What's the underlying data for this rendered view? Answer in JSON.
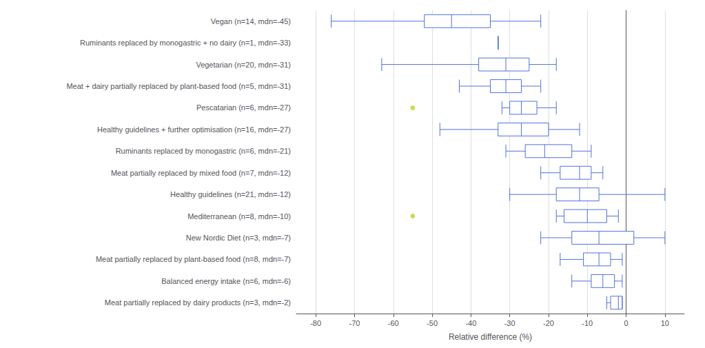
{
  "chart_data": {
    "type": "boxplot",
    "orientation": "horizontal",
    "categories": [
      "Vegan (n=14, mdn=-45)",
      "Ruminants replaced by monogastric + no dairy (n=1, mdn=-33)",
      "Vegetarian (n=20, mdn=-31)",
      "Meat + dairy partially replaced by plant-based food (n=5, mdn=-31)",
      "Pescatarian (n=6, mdn=-27)",
      "Healthy guidelines + further optimisation (n=16, mdn=-27)",
      "Ruminants replaced by monogastric (n=6, mdn=-21)",
      "Meat partially replaced by mixed food (n=7, mdn=-12)",
      "Healthy guidelines (n=21, mdn=-12)",
      "Mediterranean (n=8, mdn=-10)",
      "New Nordic Diet (n=3, mdn=-7)",
      "Meat partially replaced by plant-based food (n=8, mdn=-7)",
      "Balanced energy intake (n=6, mdn=-6)",
      "Meat partially replaced by dairy products (n=3, mdn=-2)"
    ],
    "boxes": [
      {
        "whisker_low": -76,
        "q1": -52,
        "median": -45,
        "q3": -35,
        "whisker_high": -22,
        "fliers": []
      },
      {
        "whisker_low": -33,
        "q1": -33,
        "median": -33,
        "q3": -33,
        "whisker_high": -33,
        "fliers": []
      },
      {
        "whisker_low": -63,
        "q1": -38,
        "median": -31,
        "q3": -25,
        "whisker_high": -18,
        "fliers": []
      },
      {
        "whisker_low": -43,
        "q1": -35,
        "median": -31,
        "q3": -27,
        "whisker_high": -22,
        "fliers": []
      },
      {
        "whisker_low": -32,
        "q1": -30,
        "median": -27,
        "q3": -23,
        "whisker_high": -18,
        "fliers": [
          -55
        ]
      },
      {
        "whisker_low": -48,
        "q1": -33,
        "median": -27,
        "q3": -20,
        "whisker_high": -12,
        "fliers": []
      },
      {
        "whisker_low": -31,
        "q1": -26,
        "median": -21,
        "q3": -14,
        "whisker_high": -9,
        "fliers": []
      },
      {
        "whisker_low": -22,
        "q1": -17,
        "median": -12,
        "q3": -9,
        "whisker_high": -6,
        "fliers": []
      },
      {
        "whisker_low": -30,
        "q1": -18,
        "median": -12,
        "q3": -7,
        "whisker_high": 10,
        "fliers": []
      },
      {
        "whisker_low": -18,
        "q1": -16,
        "median": -10,
        "q3": -5,
        "whisker_high": -2,
        "fliers": [
          -55
        ]
      },
      {
        "whisker_low": -22,
        "q1": -14,
        "median": -7,
        "q3": 2,
        "whisker_high": 10,
        "fliers": []
      },
      {
        "whisker_low": -17,
        "q1": -11,
        "median": -7,
        "q3": -4,
        "whisker_high": -1,
        "fliers": []
      },
      {
        "whisker_low": -14,
        "q1": -9,
        "median": -6,
        "q3": -3,
        "whisker_high": -1,
        "fliers": []
      },
      {
        "whisker_low": -5,
        "q1": -4,
        "median": -2,
        "q3": -1,
        "whisker_high": -1,
        "fliers": []
      }
    ],
    "xlabel": "Relative difference (%)",
    "xlim": [
      -85,
      15
    ],
    "xticks": [
      -80,
      -70,
      -60,
      -50,
      -40,
      -30,
      -20,
      -10,
      0,
      10
    ],
    "grid": true
  }
}
